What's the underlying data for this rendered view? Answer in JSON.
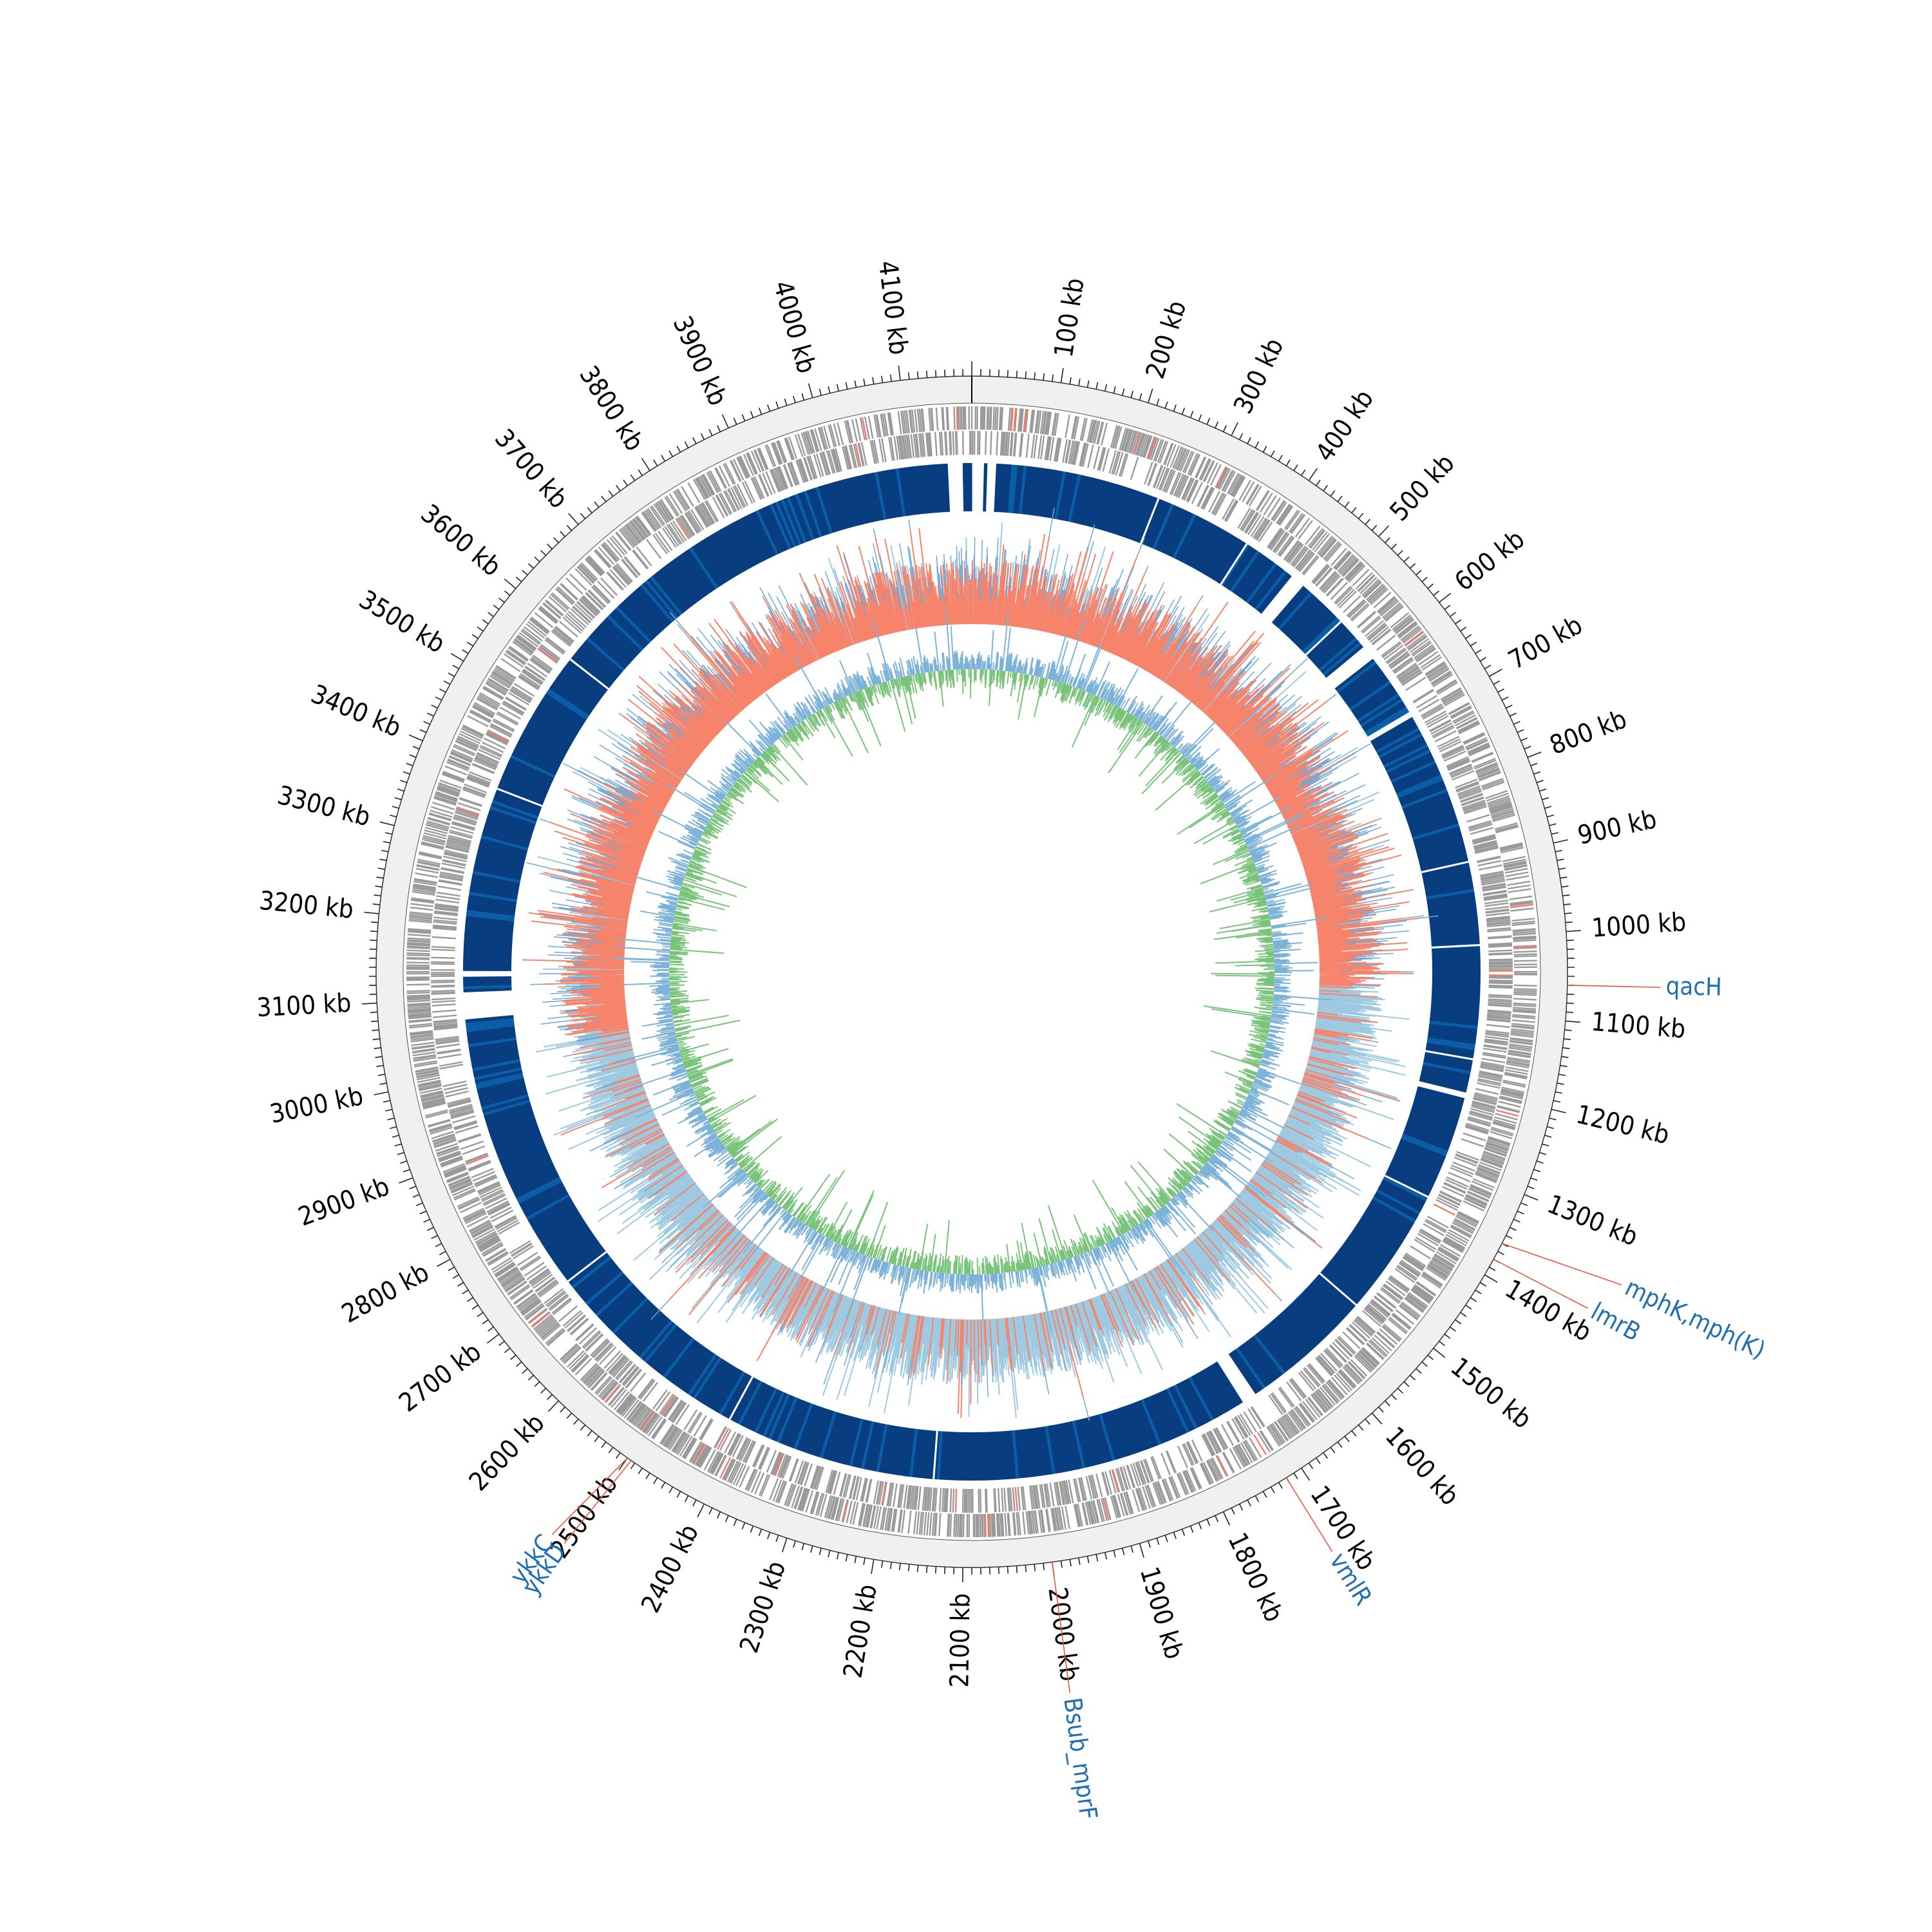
{
  "genome": {
    "total_kb": 4180,
    "tick_labels": [
      "100 kb",
      "200 kb",
      "300 kb",
      "400 kb",
      "500 kb",
      "600 kb",
      "700 kb",
      "800 kb",
      "900 kb",
      "1000 kb",
      "1100 kb",
      "1200 kb",
      "1300 kb",
      "1400 kb",
      "1500 kb",
      "1600 kb",
      "1700 kb",
      "1800 kb",
      "1900 kb",
      "2000 kb",
      "2100 kb",
      "2200 kb",
      "2300 kb",
      "2400 kb",
      "2500 kb",
      "2600 kb",
      "2700 kb",
      "2800 kb",
      "2900 kb",
      "3000 kb",
      "3100 kb",
      "3200 kb",
      "3300 kb",
      "3400 kb",
      "3500 kb",
      "3600 kb",
      "3700 kb",
      "3800 kb",
      "3900 kb",
      "4000 kb",
      "4100 kb"
    ]
  },
  "annotations": [
    {
      "name": "qacH",
      "position_kb": 1060
    },
    {
      "name": "mphK,mph(K)",
      "position_kb": 1360
    },
    {
      "name": "lmrB",
      "position_kb": 1380
    },
    {
      "name": "vmlR",
      "position_kb": 1720
    },
    {
      "name": "Bsub_mprF",
      "position_kb": 2000
    },
    {
      "name": "ykkD",
      "position_kb": 2495
    },
    {
      "name": "ykkC",
      "position_kb": 2500
    }
  ],
  "colors": {
    "outer_ring": "#f0f0f0",
    "gene_gray": "#9a9a9a",
    "gene_red": "#f47b6b",
    "blast_dark": "#083d7f",
    "blast_mid": "#0a5ea8",
    "gc_positive": "#f7836b",
    "gc_negative": "#9ecae1",
    "gc_spike": "#6fa8d8",
    "skew_positive": "#79c47a",
    "skew_negative": "#7eb3d9",
    "label_blue": "#1f6fb4",
    "label_line": "#e8553f"
  }
}
